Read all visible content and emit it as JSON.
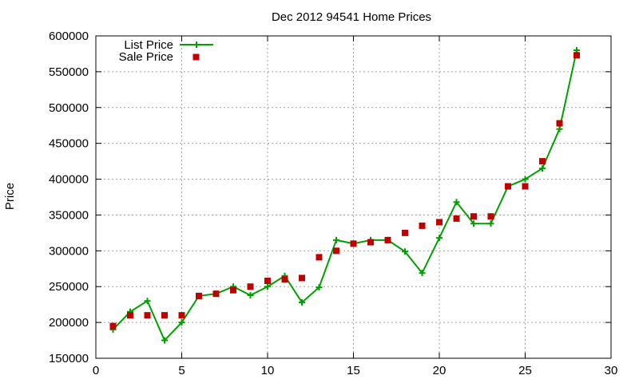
{
  "chart_data": {
    "type": "line",
    "title": "Dec 2012 94541 Home Prices",
    "xlabel": "",
    "ylabel": "Price",
    "xlim": [
      0,
      30
    ],
    "ylim": [
      150000,
      600000
    ],
    "xticks": [
      0,
      5,
      10,
      15,
      20,
      25,
      30
    ],
    "yticks": [
      150000,
      200000,
      250000,
      300000,
      350000,
      400000,
      450000,
      500000,
      550000,
      600000
    ],
    "grid": true,
    "legend_position": "top-left",
    "x": [
      1,
      2,
      3,
      4,
      5,
      6,
      7,
      8,
      9,
      10,
      11,
      12,
      13,
      14,
      15,
      16,
      17,
      18,
      19,
      20,
      21,
      22,
      23,
      24,
      25,
      26,
      27,
      28
    ],
    "series": [
      {
        "name": "List Price",
        "style": "line-with-plus-markers",
        "color": "#00a000",
        "values": [
          190000,
          215000,
          230000,
          175000,
          200000,
          237000,
          240000,
          250000,
          238000,
          250000,
          265000,
          228000,
          249000,
          315000,
          310000,
          315000,
          315000,
          299000,
          269000,
          318000,
          368000,
          338000,
          338000,
          390000,
          400000,
          415000,
          470000,
          580000
        ]
      },
      {
        "name": "Sale Price",
        "style": "square-markers",
        "color": "#c00000",
        "values": [
          195000,
          210000,
          210000,
          210000,
          210000,
          237000,
          240000,
          245000,
          250000,
          258000,
          260000,
          262000,
          291000,
          300000,
          310000,
          312000,
          315000,
          325000,
          335000,
          340000,
          345000,
          348000,
          348000,
          390000,
          390000,
          425000,
          478000,
          573000
        ]
      }
    ]
  }
}
